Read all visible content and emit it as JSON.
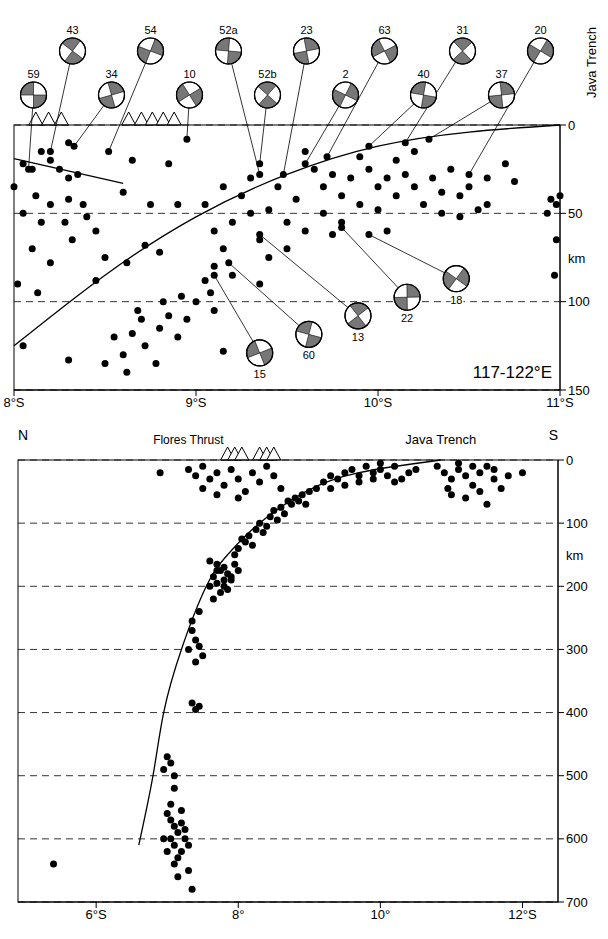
{
  "chart_data": [
    {
      "type": "scatter",
      "region_label": "117-122°E",
      "trench_label": "Java Trench",
      "y_unit_label": "km",
      "xlim": [
        8,
        11
      ],
      "xticks": [
        {
          "value": 8,
          "label": "8°S"
        },
        {
          "value": 9,
          "label": "9°S"
        },
        {
          "value": 10,
          "label": "10°S"
        },
        {
          "value": 11,
          "label": "11°S"
        }
      ],
      "ylim": [
        0,
        150
      ],
      "yticks": [
        0,
        50,
        100,
        150
      ],
      "grid": true,
      "marker": "circle",
      "x": [
        8.05,
        8.1,
        8.15,
        8.2,
        8.25,
        8.3,
        8.35,
        8.12,
        8.2,
        8.3,
        8.38,
        8.05,
        8.15,
        8.28,
        8.4,
        8.1,
        8.2,
        8.32,
        8.45,
        8.02,
        8.13,
        8.5,
        8.6,
        8.65,
        8.75,
        8.3,
        8.0,
        8.45,
        8.62,
        8.72,
        8.8,
        8.9,
        8.85,
        8.55,
        8.6,
        8.65,
        8.7,
        8.72,
        8.8,
        8.78,
        8.85,
        8.9,
        8.95,
        8.62,
        8.5,
        8.68,
        8.82,
        8.92,
        9.0,
        9.05,
        9.08,
        8.05,
        8.3,
        9.15,
        9.1,
        9.05,
        9.1,
        9.15,
        9.2,
        9.25,
        9.3,
        9.35,
        9.4,
        9.45,
        9.5,
        9.55,
        9.6,
        9.3,
        9.4,
        9.2,
        9.5,
        9.15,
        9.1,
        9.35,
        9.65,
        9.7,
        9.75,
        9.8,
        9.85,
        9.9,
        9.95,
        10.0,
        10.05,
        10.1,
        10.15,
        10.2,
        10.25,
        10.3,
        10.35,
        10.4,
        10.45,
        10.5,
        10.55,
        10.6,
        9.7,
        9.8,
        10.0,
        10.1,
        10.2,
        9.9,
        9.6,
        10.35,
        10.45,
        9.75,
        10.05,
        10.6,
        10.7,
        10.75,
        10.95,
        10.98,
        11.0,
        10.98,
        10.93,
        10.97
      ],
      "values": [
        22,
        25,
        15,
        20,
        25,
        30,
        28,
        40,
        45,
        42,
        45,
        50,
        55,
        55,
        52,
        70,
        78,
        65,
        60,
        90,
        95,
        75,
        38,
        20,
        45,
        10,
        35,
        88,
        78,
        68,
        72,
        45,
        22,
        120,
        130,
        118,
        110,
        125,
        115,
        135,
        108,
        120,
        110,
        140,
        135,
        105,
        100,
        97,
        100,
        88,
        95,
        125,
        133,
        128,
        105,
        45,
        60,
        70,
        55,
        40,
        50,
        65,
        48,
        35,
        55,
        42,
        60,
        30,
        75,
        85,
        70,
        35,
        80,
        90,
        25,
        35,
        28,
        40,
        30,
        45,
        25,
        35,
        30,
        40,
        28,
        35,
        45,
        30,
        38,
        25,
        40,
        35,
        48,
        30,
        50,
        55,
        48,
        20,
        15,
        18,
        15,
        50,
        52,
        62,
        60,
        45,
        22,
        32,
        42,
        45,
        40,
        65,
        50,
        85
      ],
      "curves": [
        {
          "x": [
            8.0,
            8.6
          ],
          "values": [
            19,
            33
          ]
        },
        {
          "x": [
            8.0,
            8.5,
            9.0,
            9.5,
            10.0,
            10.5,
            11.0
          ],
          "values": [
            125,
            85,
            52,
            28,
            12,
            4,
            0
          ]
        }
      ],
      "volcanoes": [
        8.12,
        8.19,
        8.26,
        8.63,
        8.7,
        8.76,
        8.82,
        8.88
      ],
      "mechanisms": {
        "labels": [
          "59",
          "43",
          "34",
          "54",
          "10",
          "52a",
          "52b",
          "23",
          "2",
          "63",
          "40",
          "31",
          "37",
          "20",
          "15",
          "60",
          "13",
          "22",
          "18"
        ],
        "x": [
          8.08,
          8.2,
          8.33,
          8.52,
          8.95,
          9.35,
          9.35,
          9.48,
          9.6,
          9.72,
          9.95,
          10.15,
          10.28,
          10.5,
          9.1,
          9.18,
          9.35,
          9.8,
          9.95
        ],
        "values": [
          25,
          15,
          12,
          15,
          8,
          28,
          22,
          28,
          22,
          18,
          12,
          10,
          8,
          28,
          85,
          78,
          62,
          58,
          62
        ]
      }
    },
    {
      "type": "scatter",
      "left_label": "N",
      "right_label": "S",
      "thrust_label": "Flores Thrust",
      "trench_label": "Java Trench",
      "y_unit_label": "km",
      "xlim": [
        4.9,
        12.5
      ],
      "xticks": [
        {
          "value": 6,
          "label": "6°S"
        },
        {
          "value": 8,
          "label": "8°"
        },
        {
          "value": 10,
          "label": "10°"
        },
        {
          "value": 12,
          "label": "12°S"
        }
      ],
      "ylim": [
        0,
        700
      ],
      "yticks": [
        0,
        100,
        200,
        300,
        400,
        500,
        600,
        700
      ],
      "grid": true,
      "marker": "circle",
      "x": [
        7.0,
        7.05,
        7.1,
        7.15,
        7.2,
        7.25,
        7.1,
        7.0,
        7.05,
        7.15,
        7.2,
        7.3,
        7.1,
        7.25,
        7.05,
        7.2,
        6.95,
        7.3,
        7.35,
        7.15,
        7.0,
        7.05,
        7.1,
        6.95,
        7.1,
        7.35,
        7.45,
        7.4,
        7.35,
        7.4,
        7.45,
        7.3,
        7.5,
        7.4,
        7.35,
        7.45,
        7.6,
        7.7,
        7.75,
        7.8,
        7.85,
        7.9,
        7.65,
        7.7,
        7.8,
        7.9,
        7.75,
        7.85,
        8.0,
        7.95,
        7.7,
        7.8,
        7.6,
        7.65,
        7.95,
        8.0,
        8.1,
        8.15,
        8.25,
        8.3,
        8.2,
        8.35,
        8.05,
        8.4,
        8.45,
        8.5,
        8.6,
        8.7,
        8.8,
        8.9,
        8.55,
        8.65,
        8.75,
        8.85,
        9.0,
        9.1,
        8.95,
        9.2,
        9.3,
        9.4,
        9.5,
        9.6,
        9.7,
        9.8,
        9.9,
        10.0,
        10.1,
        10.2,
        10.3,
        10.4,
        10.5,
        9.5,
        9.7,
        9.9,
        10.0,
        10.2,
        9.3,
        10.8,
        10.9,
        11.0,
        11.1,
        11.2,
        11.3,
        11.4,
        11.5,
        11.6,
        11.7,
        11.8,
        11.0,
        11.2,
        11.4,
        11.5,
        11.1,
        11.6,
        12.0,
        11.3,
        10.95,
        6.9,
        7.3,
        7.4,
        7.5,
        7.6,
        7.7,
        7.8,
        7.9,
        8.0,
        8.1,
        8.2,
        8.3,
        8.4,
        8.5,
        8.6,
        7.5,
        7.7,
        8.0,
        5.4
      ],
      "values": [
        560,
        570,
        580,
        590,
        575,
        600,
        610,
        620,
        600,
        630,
        620,
        610,
        640,
        585,
        545,
        555,
        600,
        650,
        680,
        660,
        470,
        480,
        500,
        490,
        520,
        385,
        390,
        395,
        270,
        285,
        295,
        300,
        310,
        320,
        255,
        240,
        160,
        165,
        175,
        170,
        180,
        185,
        185,
        195,
        200,
        190,
        210,
        205,
        175,
        165,
        175,
        190,
        200,
        220,
        150,
        140,
        130,
        120,
        110,
        100,
        135,
        115,
        125,
        105,
        90,
        80,
        75,
        65,
        60,
        55,
        95,
        85,
        70,
        65,
        50,
        45,
        70,
        35,
        25,
        30,
        20,
        15,
        25,
        10,
        20,
        15,
        25,
        10,
        30,
        20,
        15,
        40,
        35,
        30,
        5,
        35,
        45,
        10,
        20,
        30,
        15,
        25,
        40,
        20,
        10,
        30,
        45,
        25,
        55,
        60,
        50,
        70,
        5,
        15,
        20,
        10,
        45,
        20,
        15,
        25,
        10,
        30,
        20,
        40,
        15,
        30,
        50,
        20,
        35,
        10,
        25,
        45,
        45,
        55,
        60,
        640
      ],
      "curves": [
        {
          "x": [
            10.85,
            9.7,
            8.95,
            8.3,
            7.85,
            7.55,
            7.2,
            6.95,
            6.8,
            6.6
          ],
          "values": [
            0,
            20,
            50,
            100,
            150,
            200,
            300,
            400,
            500,
            610
          ]
        }
      ],
      "volcanoes": [
        7.85,
        7.95,
        8.05,
        8.3,
        8.4,
        8.5
      ]
    }
  ]
}
